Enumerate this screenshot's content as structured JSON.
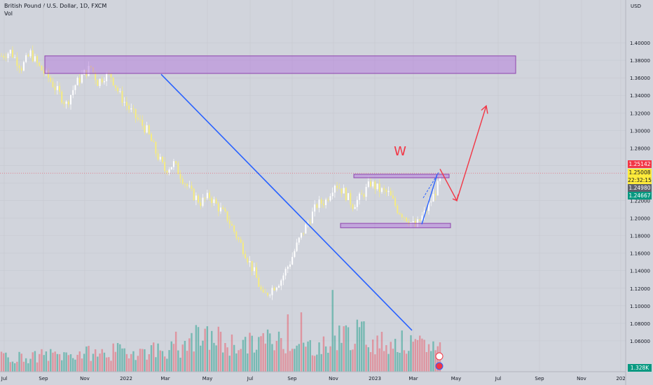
{
  "header": {
    "symbol_title": "British Pound / U.S. Dollar, 1D, FXCM",
    "indicator": "Vol",
    "currency": "USD"
  },
  "chart_data": {
    "type": "candlestick",
    "x_tick_labels": [
      "Jul",
      "Sep",
      "Nov",
      "2022",
      "Mar",
      "May",
      "Jul",
      "Sep",
      "Nov",
      "2023",
      "Mar",
      "May",
      "Jul",
      "Sep",
      "Nov",
      "202"
    ],
    "y_tick_labels": [
      "1.40000",
      "1.38000",
      "1.36000",
      "1.34000",
      "1.32000",
      "1.30000",
      "1.28000",
      "1.26000",
      "1.24000",
      "1.22000",
      "1.20000",
      "1.18000",
      "1.16000",
      "1.14000",
      "1.12000",
      "1.10000",
      "1.08000",
      "1.06000"
    ],
    "ylim": [
      1.04,
      1.42
    ],
    "price_path": [
      [
        0,
        1.385
      ],
      [
        4,
        1.39
      ],
      [
        9,
        1.372
      ],
      [
        13,
        1.388
      ],
      [
        17,
        1.372
      ],
      [
        21,
        1.36
      ],
      [
        25,
        1.345
      ],
      [
        29,
        1.33
      ],
      [
        33,
        1.352
      ],
      [
        37,
        1.365
      ],
      [
        40,
        1.372
      ],
      [
        43,
        1.355
      ],
      [
        46,
        1.362
      ],
      [
        49,
        1.362
      ],
      [
        53,
        1.34
      ],
      [
        57,
        1.325
      ],
      [
        61,
        1.312
      ],
      [
        65,
        1.3
      ],
      [
        69,
        1.275
      ],
      [
        73,
        1.255
      ],
      [
        77,
        1.262
      ],
      [
        81,
        1.245
      ],
      [
        85,
        1.228
      ],
      [
        89,
        1.218
      ],
      [
        93,
        1.225
      ],
      [
        97,
        1.212
      ],
      [
        101,
        1.2
      ],
      [
        105,
        1.18
      ],
      [
        109,
        1.16
      ],
      [
        113,
        1.138
      ],
      [
        117,
        1.11
      ],
      [
        121,
        1.12
      ],
      [
        125,
        1.13
      ],
      [
        129,
        1.15
      ],
      [
        133,
        1.175
      ],
      [
        137,
        1.195
      ],
      [
        141,
        1.215
      ],
      [
        145,
        1.22
      ],
      [
        149,
        1.24
      ],
      [
        153,
        1.23
      ],
      [
        157,
        1.215
      ],
      [
        161,
        1.225
      ],
      [
        165,
        1.24
      ],
      [
        169,
        1.232
      ],
      [
        173,
        1.228
      ],
      [
        177,
        1.21
      ],
      [
        181,
        1.2
      ],
      [
        185,
        1.19
      ],
      [
        189,
        1.205
      ],
      [
        193,
        1.225
      ],
      [
        197,
        1.248
      ]
    ],
    "volume_levels": [
      0.4,
      0.45,
      0.5,
      0.55,
      0.6,
      0.9,
      0.75,
      0.85,
      0.7,
      1.0,
      0.8,
      0.7
    ],
    "annotations": {
      "pattern_label": "W",
      "resistance_zone_top": [
        1.365,
        1.385
      ],
      "range_top_zone": [
        1.246,
        1.25
      ],
      "range_bottom_zone": [
        1.189,
        1.194
      ],
      "forecast_path": [
        [
          1.25,
          1.26
        ],
        [
          1.22,
          1.33
        ]
      ]
    },
    "price_badges": [
      {
        "text": "1.25142",
        "color": "#f23645"
      },
      {
        "text": "1.25008",
        "color": "#ffeb3b",
        "text_color": "#131722"
      },
      {
        "text": "22:32:15",
        "color": "#ffeb3b",
        "text_color": "#131722"
      },
      {
        "text": "1.24980",
        "color": "#5d606b"
      },
      {
        "text": "1.24667",
        "color": "#089981"
      }
    ],
    "volume_badge": {
      "text": "1.328K",
      "color": "#089981"
    }
  }
}
